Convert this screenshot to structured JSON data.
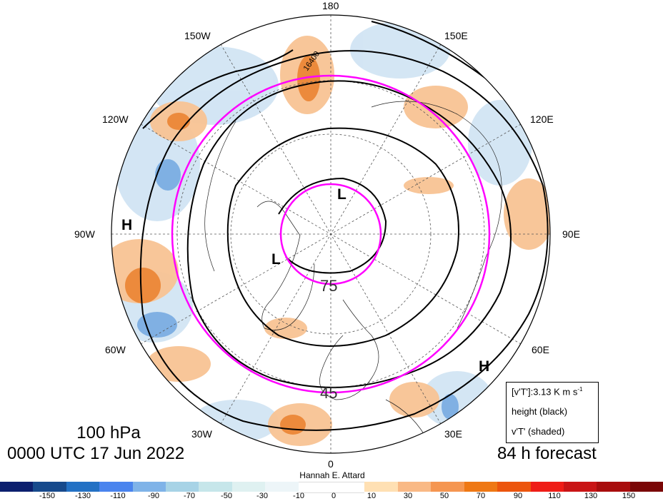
{
  "map": {
    "longitude_labels": {
      "lon_180": "180",
      "lon_150e": "150E",
      "lon_120e": "120E",
      "lon_90e": "90E",
      "lon_60e": "60E",
      "lon_30e": "30E",
      "lon_0": "0",
      "lon_30w": "30W",
      "lon_60w": "60W",
      "lon_90w": "90W",
      "lon_120w": "120W",
      "lon_150w": "150W"
    },
    "latitude_labels": {
      "lat_75": "75",
      "lat_45": "45"
    },
    "contour_label": "16400",
    "pressure_systems": {
      "high_west": "H",
      "high_southeast": "H",
      "low_pole": "L",
      "low_greenland": "L"
    },
    "boundary_circle_color": "#ff00ff",
    "contour_color": "#000000"
  },
  "titles": {
    "level": "100 hPa",
    "datetime": "0000 UTC 17 Jun 2022",
    "forecast": "84 h forecast",
    "author": "Hannah E. Attard"
  },
  "legend": {
    "line1": "[v'T']:3.13 K m s",
    "line1_sup": "-1",
    "line2": "height (black)",
    "line3": "v'T' (shaded)"
  },
  "colorbar": {
    "colors": [
      "#0c1f6e",
      "#174a8c",
      "#2371c4",
      "#4a84ee",
      "#7fb3e8",
      "#a7d3e6",
      "#c6e6ea",
      "#dff1f1",
      "#edf5f8",
      "#ffffff",
      "#ffffff",
      "#ffe0b3",
      "#f9b985",
      "#f59651",
      "#ef7814",
      "#ec550d",
      "#ef1d17",
      "#c91516",
      "#a80d0d",
      "#7a0606"
    ],
    "labels": {
      "m150": "-150",
      "m130": "-130",
      "m110": "-110",
      "m90": "-90",
      "m70": "-70",
      "m50": "-50",
      "m30": "-30",
      "m10": "-10",
      "z0": "0",
      "p10": "10",
      "p30": "30",
      "p50": "50",
      "p70": "70",
      "p90": "90",
      "p110": "110",
      "p130": "130",
      "p150": "150"
    }
  }
}
